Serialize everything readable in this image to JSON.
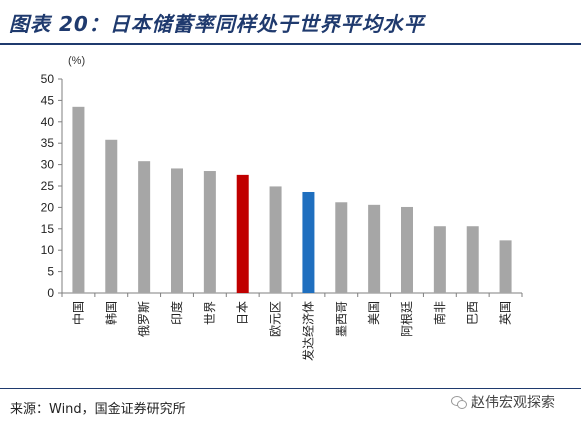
{
  "header": {
    "title": "图表 20：日本储蓄率同样处于世界平均水平"
  },
  "chart_data": {
    "type": "bar",
    "unit": "(%)",
    "categories": [
      "中国",
      "韩国",
      "俄罗斯",
      "印度",
      "世界",
      "日本",
      "欧元区",
      "发达经济体",
      "墨西哥",
      "美国",
      "阿根廷",
      "南非",
      "巴西",
      "英国"
    ],
    "values": [
      43.5,
      35.8,
      30.8,
      29.1,
      28.5,
      27.6,
      24.9,
      23.6,
      21.2,
      20.6,
      20.1,
      15.6,
      15.6,
      12.3
    ],
    "colors": [
      "#a6a6a6",
      "#a6a6a6",
      "#a6a6a6",
      "#a6a6a6",
      "#a6a6a6",
      "#c00000",
      "#a6a6a6",
      "#1f6fbf",
      "#a6a6a6",
      "#a6a6a6",
      "#a6a6a6",
      "#a6a6a6",
      "#a6a6a6",
      "#a6a6a6"
    ],
    "ylim": [
      0,
      50
    ],
    "yticks": [
      "0",
      "5",
      "10",
      "15",
      "20",
      "25",
      "30",
      "35",
      "40",
      "45",
      "50"
    ],
    "grid": false
  },
  "footer": {
    "source": "来源：Wind，国金证券研究所",
    "watermark": "赵伟宏观探索"
  }
}
